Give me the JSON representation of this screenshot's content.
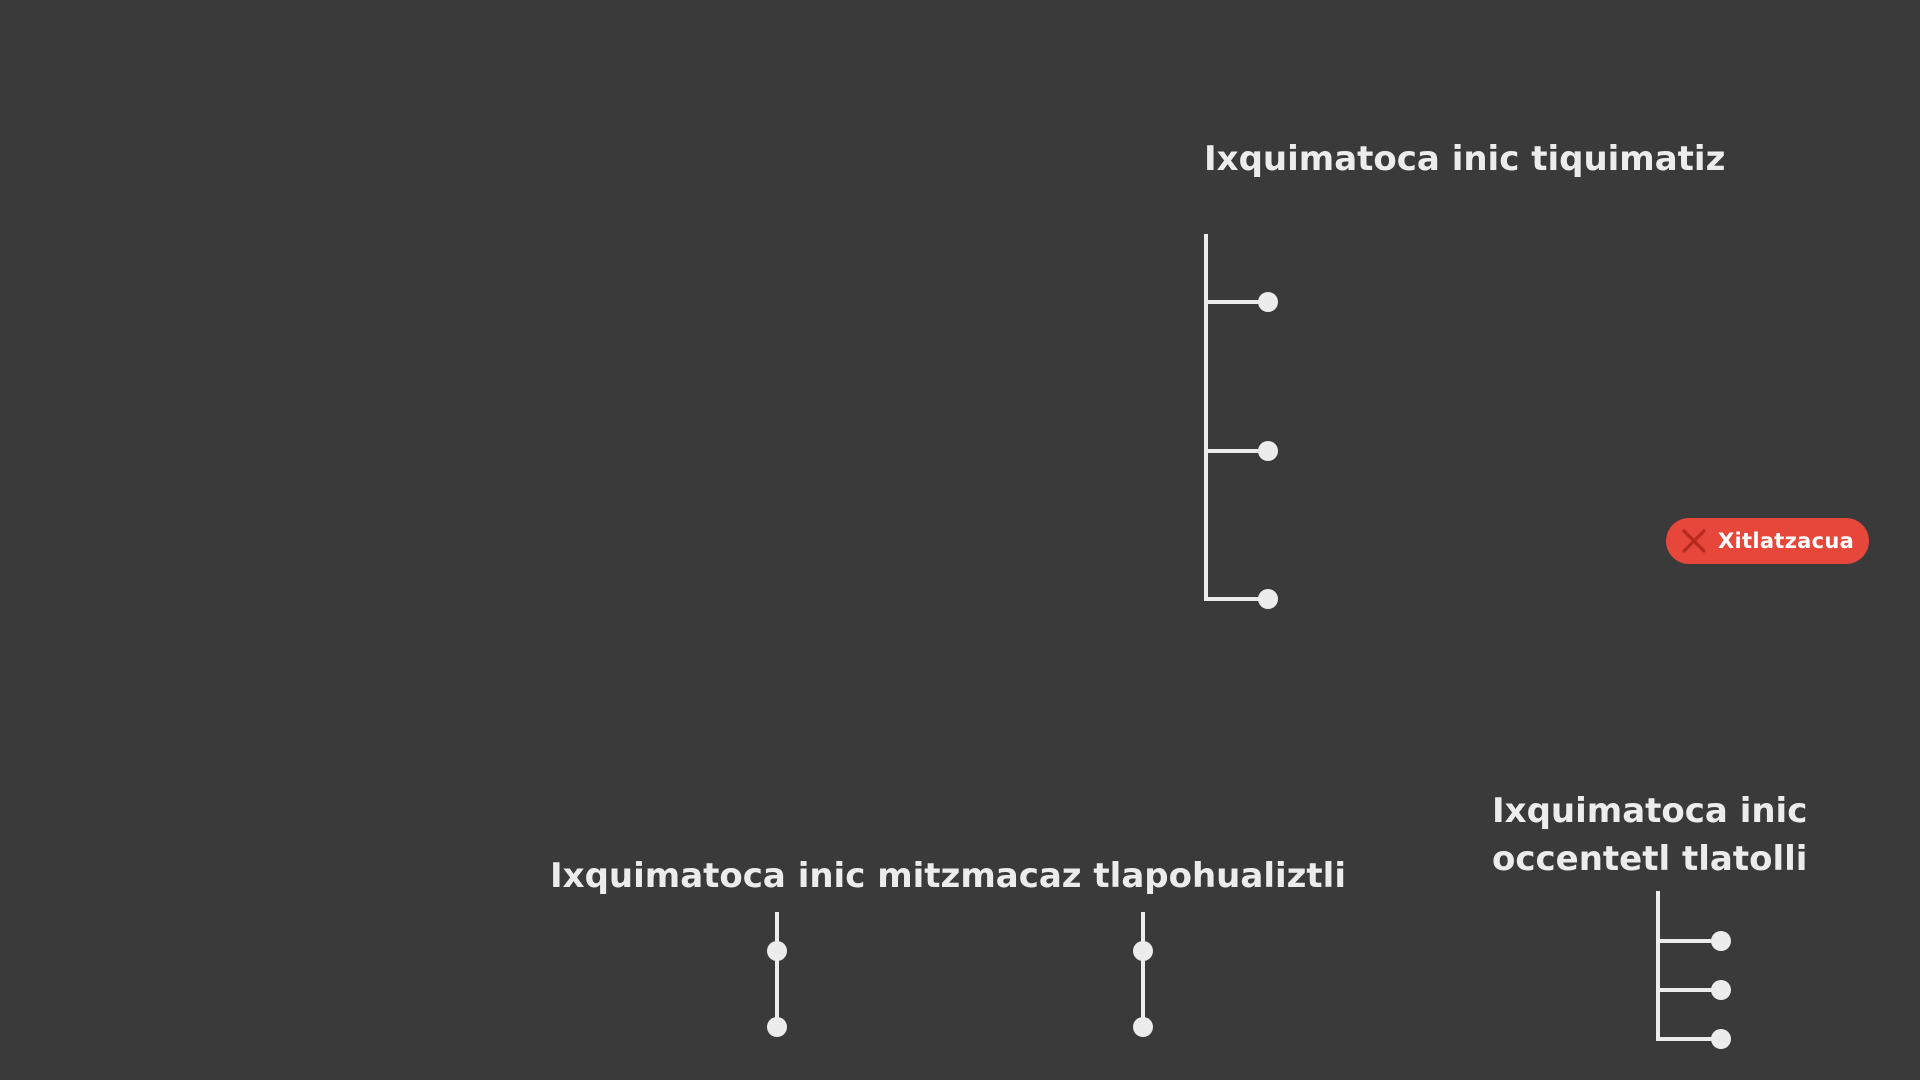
{
  "headings": {
    "top": "Ixquimatoca inic tiquimatiz",
    "bottom": "Ixquimatoca inic mitzmacaz tlapohualiztli",
    "right": [
      "Ixquimatoca inic",
      "occentetl tlatolli"
    ]
  },
  "badge": {
    "label": "Xitlatzacua",
    "icon": "close-icon",
    "color": "#e6473a"
  },
  "colors": {
    "background": "#3a3a3a",
    "foreground": "#ececec"
  }
}
